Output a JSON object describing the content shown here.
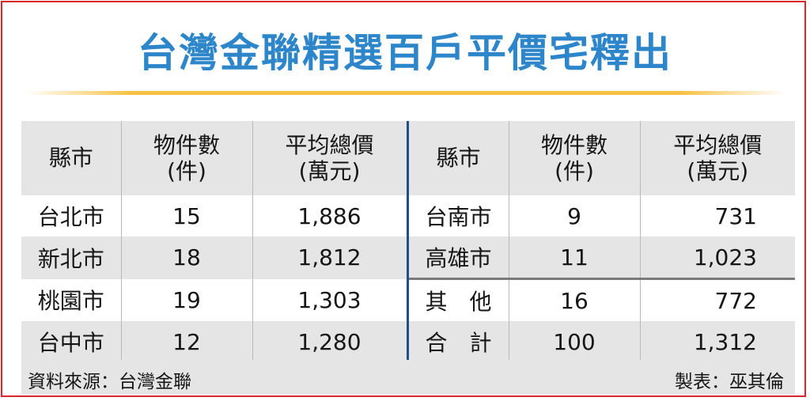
{
  "title": "台灣金聯精選百戶平價宅釋出",
  "headers": {
    "county": "縣市",
    "count_line1": "物件數",
    "count_line2": "(件)",
    "price_line1": "平均總價",
    "price_line2": "(萬元)"
  },
  "left_rows": [
    {
      "county": "台北市",
      "count": "15",
      "price": "1,886"
    },
    {
      "county": "新北市",
      "count": "18",
      "price": "1,812"
    },
    {
      "county": "桃園市",
      "count": "19",
      "price": "1,303"
    },
    {
      "county": "台中市",
      "count": "12",
      "price": "1,280"
    }
  ],
  "right_rows": [
    {
      "county": "台南市",
      "count": "9",
      "price": "731"
    },
    {
      "county": "高雄市",
      "count": "11",
      "price": "1,023"
    },
    {
      "county": "其　他",
      "count": "16",
      "price": "772"
    },
    {
      "county": "合　計",
      "count": "100",
      "price": "1,312"
    }
  ],
  "footer": {
    "source": "資料來源：台灣金聯",
    "maker": "製表：巫其倫"
  },
  "colors": {
    "title": "#2d86c9",
    "title_underline": "#f6c142",
    "frame": "#d9262c",
    "row_shade": "#e5e5e5",
    "center_divider": "#1f4e8c"
  }
}
